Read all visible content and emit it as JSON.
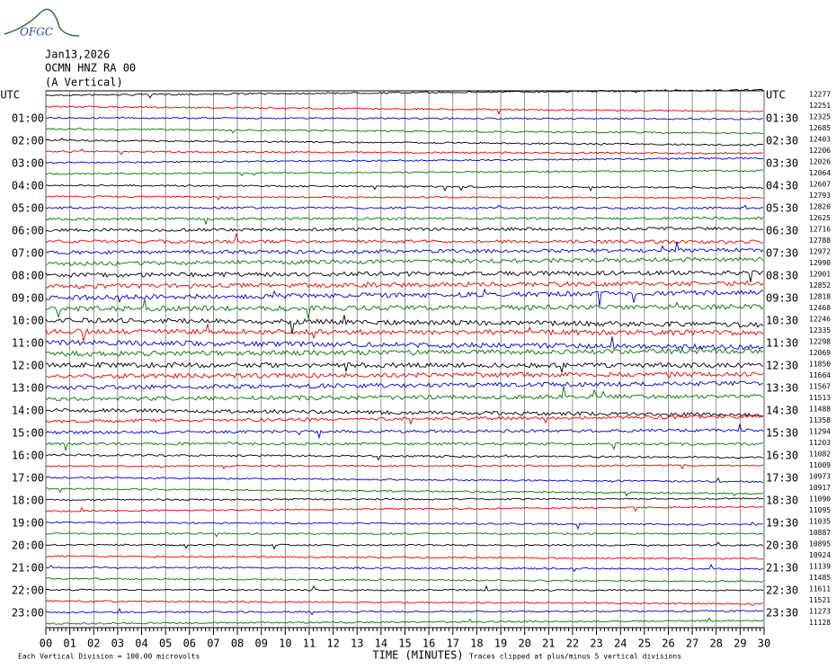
{
  "header": {
    "logo_text": "OFGC",
    "date": "Jan13,2026",
    "station": "OCMN HNZ RA 00",
    "component": "(A Vertical)"
  },
  "left_labels": [
    "UTC",
    "01:00",
    "02:00",
    "03:00",
    "04:00",
    "05:00",
    "06:00",
    "07:00",
    "08:00",
    "09:00",
    "10:00",
    "11:00",
    "12:00",
    "13:00",
    "14:00",
    "15:00",
    "16:00",
    "17:00",
    "18:00",
    "19:00",
    "20:00",
    "21:00",
    "22:00",
    "23:00"
  ],
  "right_labels": [
    "UTC",
    "01:30",
    "02:30",
    "03:30",
    "04:30",
    "05:30",
    "06:30",
    "07:30",
    "08:30",
    "09:30",
    "10:30",
    "11:30",
    "12:30",
    "13:30",
    "14:30",
    "15:30",
    "16:30",
    "17:30",
    "18:30",
    "19:30",
    "20:30",
    "21:30",
    "22:30",
    "23:30"
  ],
  "trace_values": [
    "12277",
    "12251",
    "12325",
    "12685",
    "12403",
    "12206",
    "12026",
    "12064",
    "12607",
    "12793",
    "12820",
    "12625",
    "12716",
    "12788",
    "12972",
    "12990",
    "12901",
    "12852",
    "12818",
    "12468",
    "12246",
    "12335",
    "12298",
    "12069",
    "11850",
    "11664",
    "11567",
    "11513",
    "11488",
    "11358",
    "11294",
    "11203",
    "11082",
    "11009",
    "10973",
    "10917",
    "11090",
    "11095",
    "11035",
    "10887",
    "10895",
    "10924",
    "11139",
    "11485",
    "11611",
    "11521",
    "11273",
    "11128"
  ],
  "x_ticks": [
    "00",
    "01",
    "02",
    "03",
    "04",
    "05",
    "06",
    "07",
    "08",
    "09",
    "10",
    "11",
    "12",
    "13",
    "14",
    "15",
    "16",
    "17",
    "18",
    "19",
    "20",
    "21",
    "22",
    "23",
    "24",
    "25",
    "26",
    "27",
    "28",
    "29",
    "30"
  ],
  "x_label": "TIME (MINUTES)",
  "footer_left": "Each Vertical Division =  100.00 microvolts",
  "footer_right": "Traces clipped at plus/minus 5 vertical divisions"
}
